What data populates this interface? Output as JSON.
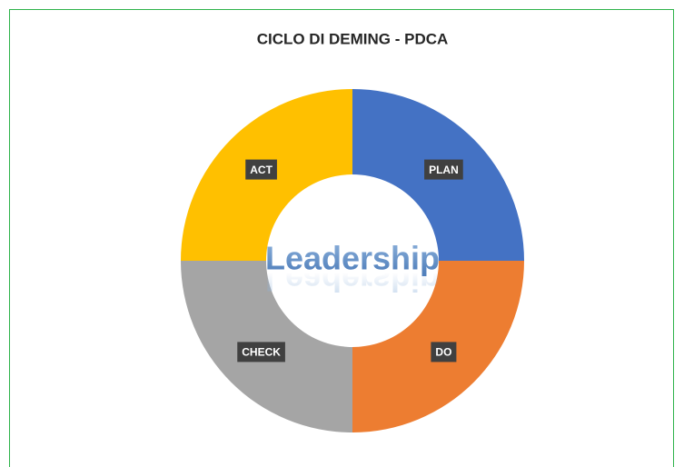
{
  "chart_data": {
    "type": "donut",
    "title": "CICLO DI DEMING - PDCA",
    "categories": [
      "PLAN",
      "DO",
      "CHECK",
      "ACT"
    ],
    "values": [
      25,
      25,
      25,
      25
    ],
    "colors": [
      "#4472c4",
      "#ed7d31",
      "#a5a5a5",
      "#ffc000"
    ],
    "center_text": "Leadership"
  }
}
